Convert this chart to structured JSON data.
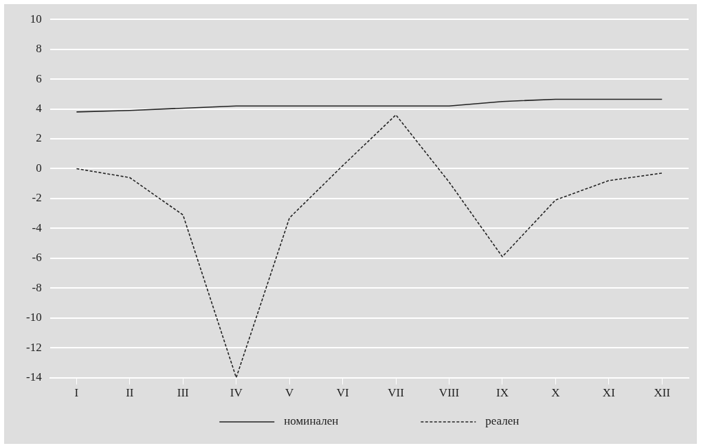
{
  "chart_data": {
    "type": "line",
    "categories": [
      "I",
      "II",
      "III",
      "IV",
      "V",
      "VI",
      "VII",
      "VIII",
      "IX",
      "X",
      "XI",
      "XII"
    ],
    "series": [
      {
        "name": "номинален",
        "color": "#222222",
        "line_style": "solid",
        "values": [
          3.8,
          3.9,
          4.05,
          4.2,
          4.2,
          4.2,
          4.2,
          4.2,
          4.5,
          4.65,
          4.65,
          4.65
        ]
      },
      {
        "name": "реален",
        "color": "#222222",
        "line_style": "dashed",
        "values": [
          0,
          -0.6,
          -3.1,
          -14,
          -3.3,
          0.2,
          3.6,
          -0.9,
          -5.9,
          -2.1,
          -0.8,
          -0.3
        ]
      }
    ],
    "ylim": [
      -14,
      10
    ],
    "yticks": [
      -14,
      -12,
      -10,
      -8,
      -6,
      -4,
      -2,
      0,
      2,
      4,
      6,
      8,
      10
    ],
    "grid": "y",
    "legend": "bottom",
    "marker": "none"
  }
}
